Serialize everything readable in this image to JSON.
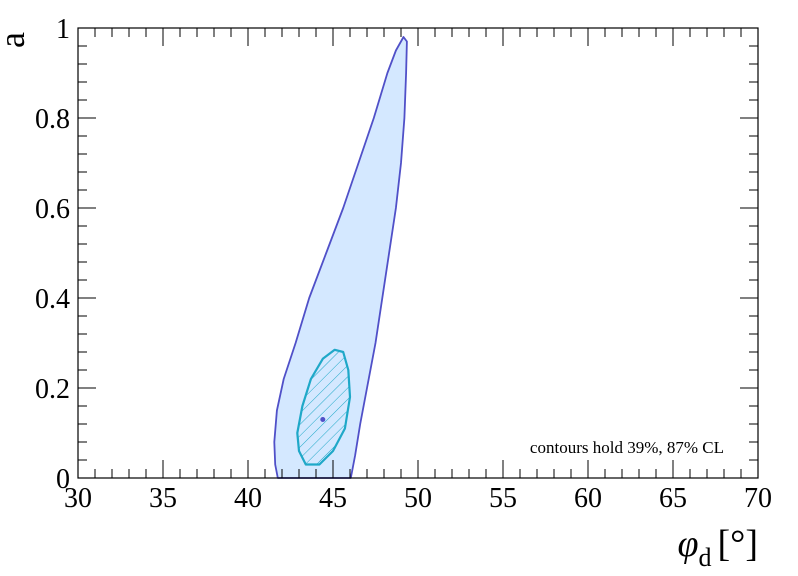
{
  "chart_data": {
    "type": "contour",
    "title": "",
    "xlabel": "φ",
    "xlabel_sub": "d",
    "xlabel_unit": "[°]",
    "ylabel": "a",
    "xlim": [
      30,
      70
    ],
    "ylim": [
      0,
      1
    ],
    "x_ticks": [
      "30",
      "35",
      "40",
      "45",
      "50",
      "55",
      "60",
      "65",
      "70"
    ],
    "y_ticks": [
      "0",
      "0.2",
      "0.4",
      "0.6",
      "0.8",
      "1"
    ],
    "grid": false,
    "annotation": "contours hold 39%, 87% CL",
    "best_fit": {
      "x": 44.4,
      "y": 0.13
    },
    "contours": [
      {
        "level": "87% CL",
        "fill": "#d4e8ff",
        "stroke": "#5050c8",
        "points": [
          [
            49.15,
            0.98
          ],
          [
            49.35,
            0.97
          ],
          [
            49.3,
            0.9
          ],
          [
            49.2,
            0.8
          ],
          [
            49.0,
            0.7
          ],
          [
            48.7,
            0.6
          ],
          [
            48.3,
            0.5
          ],
          [
            47.9,
            0.4
          ],
          [
            47.5,
            0.3
          ],
          [
            47.0,
            0.2
          ],
          [
            46.6,
            0.12
          ],
          [
            46.3,
            0.05
          ],
          [
            46.05,
            0.0
          ],
          [
            41.75,
            0.0
          ],
          [
            41.6,
            0.03
          ],
          [
            41.55,
            0.08
          ],
          [
            41.7,
            0.15
          ],
          [
            42.1,
            0.22
          ],
          [
            42.8,
            0.3
          ],
          [
            43.6,
            0.4
          ],
          [
            44.6,
            0.5
          ],
          [
            45.6,
            0.6
          ],
          [
            46.5,
            0.7
          ],
          [
            47.4,
            0.8
          ],
          [
            48.2,
            0.9
          ],
          [
            48.7,
            0.95
          ]
        ]
      },
      {
        "level": "39% CL",
        "fill": "hatched",
        "stroke": "#1fa8c8",
        "points": [
          [
            45.1,
            0.285
          ],
          [
            45.6,
            0.28
          ],
          [
            45.9,
            0.24
          ],
          [
            46.0,
            0.18
          ],
          [
            45.7,
            0.11
          ],
          [
            45.0,
            0.06
          ],
          [
            44.2,
            0.03
          ],
          [
            43.4,
            0.03
          ],
          [
            43.0,
            0.06
          ],
          [
            42.9,
            0.1
          ],
          [
            43.2,
            0.16
          ],
          [
            43.7,
            0.22
          ],
          [
            44.4,
            0.265
          ]
        ]
      }
    ]
  }
}
